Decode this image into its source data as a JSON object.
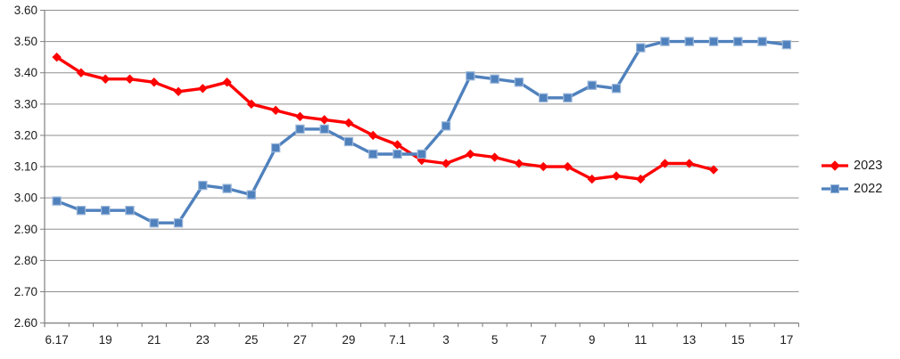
{
  "chart_data": {
    "type": "line",
    "title": "",
    "n_categories": 31,
    "background": "#ffffff",
    "grid_color": "#8f8f8f",
    "axis_color": "#808080",
    "text_color": "#1c1c1c",
    "grid": true,
    "legend_position": "right",
    "x_axis": {
      "tick_labels": [
        "6.17",
        "19",
        "21",
        "23",
        "25",
        "27",
        "29",
        "7.1",
        "3",
        "5",
        "7",
        "9",
        "11",
        "13",
        "15",
        "17"
      ],
      "label_every_n": 2
    },
    "y_axis": {
      "min": 2.6,
      "max": 3.6,
      "step": 0.1,
      "tick_labels": [
        "2.60",
        "2.70",
        "2.80",
        "2.90",
        "3.00",
        "3.10",
        "3.20",
        "3.30",
        "3.40",
        "3.50",
        "3.60"
      ]
    },
    "series": [
      {
        "name": "2023",
        "color": "#fe0000",
        "marker": "diamond",
        "values": [
          3.45,
          3.4,
          3.38,
          3.38,
          3.37,
          3.34,
          3.35,
          3.37,
          3.3,
          3.28,
          3.26,
          3.25,
          3.24,
          3.2,
          3.17,
          3.12,
          3.11,
          3.14,
          3.13,
          3.11,
          3.1,
          3.1,
          3.06,
          3.07,
          3.06,
          3.11,
          3.11,
          3.09
        ]
      },
      {
        "name": "2022",
        "color": "#4f81bd",
        "marker": "square",
        "marker_border": "#9db8da",
        "values": [
          2.99,
          2.96,
          2.96,
          2.96,
          2.92,
          2.92,
          3.04,
          3.03,
          3.01,
          3.16,
          3.22,
          3.22,
          3.18,
          3.14,
          3.14,
          3.14,
          3.23,
          3.39,
          3.38,
          3.37,
          3.32,
          3.32,
          3.36,
          3.35,
          3.48,
          3.5,
          3.5,
          3.5,
          3.5,
          3.5,
          3.49
        ]
      }
    ]
  }
}
